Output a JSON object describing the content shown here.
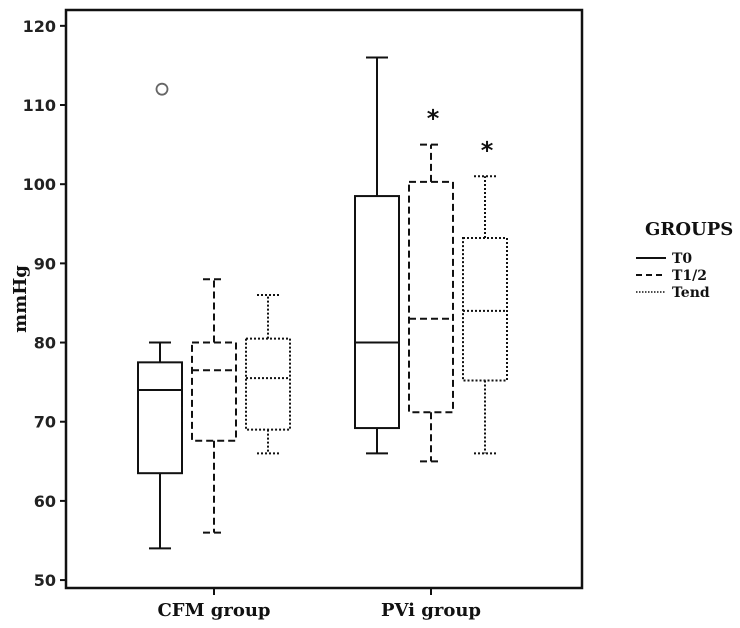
{
  "chart_data": {
    "type": "boxplot",
    "ylabel": "mmHg",
    "ylim": [
      49,
      122
    ],
    "yticks": [
      50,
      60,
      70,
      80,
      90,
      100,
      110,
      120
    ],
    "categories": [
      "CFM group",
      "PVi group"
    ],
    "legend": {
      "title": "GROUPS",
      "placement": "right",
      "entries": [
        {
          "label": "T0",
          "style": "solid"
        },
        {
          "label": "T1/2",
          "style": "dashed"
        },
        {
          "label": "Tend",
          "style": "dotted"
        }
      ]
    },
    "series": [
      {
        "name": "T0",
        "style": "solid",
        "boxes": [
          {
            "whisker_low": 54,
            "q1": 63.5,
            "median": 74,
            "q3": 77.5,
            "whisker_high": 80,
            "outliers": [
              112
            ],
            "marker": ""
          },
          {
            "whisker_low": 66,
            "q1": 69.2,
            "median": 80,
            "q3": 98.5,
            "whisker_high": 116,
            "outliers": [],
            "marker": ""
          }
        ]
      },
      {
        "name": "T1/2",
        "style": "dashed",
        "boxes": [
          {
            "whisker_low": 56,
            "q1": 67.6,
            "median": 76.5,
            "q3": 80,
            "whisker_high": 88,
            "outliers": [],
            "marker": ""
          },
          {
            "whisker_low": 65,
            "q1": 71.2,
            "median": 83,
            "q3": 100.3,
            "whisker_high": 105,
            "outliers": [],
            "marker": "*"
          }
        ]
      },
      {
        "name": "Tend",
        "style": "dotted",
        "boxes": [
          {
            "whisker_low": 66,
            "q1": 69,
            "median": 75.5,
            "q3": 80.5,
            "whisker_high": 86,
            "outliers": [],
            "marker": ""
          },
          {
            "whisker_low": 66,
            "q1": 75.2,
            "median": 84,
            "q3": 93.2,
            "whisker_high": 101,
            "outliers": [],
            "marker": "*"
          }
        ]
      }
    ]
  }
}
